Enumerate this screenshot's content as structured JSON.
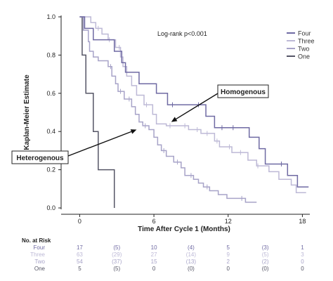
{
  "chart_data": {
    "type": "line",
    "step": true,
    "ylabel": "Kaplan-Meier Estimate",
    "xlabel": "Time After Cycle 1 (Months)",
    "xlim": [
      -1.5,
      18.6
    ],
    "ylim": [
      0,
      1.0
    ],
    "x_ticks": [
      0,
      6,
      12,
      18
    ],
    "y_ticks": [
      0.0,
      0.2,
      0.4,
      0.6,
      0.8,
      1.0
    ],
    "y_tick_labels": [
      "0.0",
      "0.2",
      "0.4",
      "0.6",
      "0.8",
      "1.0"
    ],
    "grid": false,
    "legend_position": "top-right",
    "annotation": "Log-rank p<0.001",
    "callouts": [
      {
        "label": "Homogenous",
        "arrow_to": {
          "x": 7.4,
          "y": 0.45
        }
      },
      {
        "label": "Heterogenous",
        "arrow_to": {
          "x": 4.6,
          "y": 0.41
        }
      }
    ],
    "series": [
      {
        "name": "Four",
        "color": "#6f6aa3",
        "points": [
          [
            0,
            1.0
          ],
          [
            0.4,
            0.94
          ],
          [
            1.1,
            0.88
          ],
          [
            2.8,
            0.82
          ],
          [
            3.4,
            0.76
          ],
          [
            3.7,
            0.71
          ],
          [
            4.8,
            0.65
          ],
          [
            6.2,
            0.6
          ],
          [
            7.1,
            0.54
          ],
          [
            10.2,
            0.48
          ],
          [
            10.9,
            0.42
          ],
          [
            13.7,
            0.37
          ],
          [
            14.5,
            0.31
          ],
          [
            15.0,
            0.23
          ],
          [
            16.8,
            0.17
          ],
          [
            17.6,
            0.11
          ],
          [
            18.5,
            0.11
          ]
        ],
        "censor_x": [
          7.5,
          9.6,
          11.5,
          12.4,
          16.3
        ]
      },
      {
        "name": "Three",
        "color": "#bdb9d6",
        "points": [
          [
            0,
            1.0
          ],
          [
            0.9,
            0.97
          ],
          [
            1.3,
            0.94
          ],
          [
            1.8,
            0.91
          ],
          [
            2.3,
            0.88
          ],
          [
            2.9,
            0.84
          ],
          [
            3.3,
            0.79
          ],
          [
            3.5,
            0.74
          ],
          [
            3.8,
            0.69
          ],
          [
            4.2,
            0.64
          ],
          [
            4.6,
            0.59
          ],
          [
            5.2,
            0.54
          ],
          [
            5.9,
            0.49
          ],
          [
            6.2,
            0.44
          ],
          [
            7.0,
            0.43
          ],
          [
            8.8,
            0.41
          ],
          [
            9.8,
            0.39
          ],
          [
            10.9,
            0.35
          ],
          [
            11.3,
            0.32
          ],
          [
            12.3,
            0.29
          ],
          [
            13.6,
            0.25
          ],
          [
            14.3,
            0.22
          ],
          [
            15.3,
            0.19
          ],
          [
            16.1,
            0.15
          ],
          [
            17.1,
            0.12
          ],
          [
            17.5,
            0.08
          ],
          [
            18.3,
            0.08
          ]
        ],
        "censor_x": [
          1.5,
          2.4,
          3.2,
          5.4,
          7.3,
          8.5,
          9.5,
          10.3,
          11.1,
          12.1,
          13.0,
          14.4
        ]
      },
      {
        "name": "Two",
        "color": "#a7a3c8",
        "points": [
          [
            0,
            1.0
          ],
          [
            0.3,
            0.93
          ],
          [
            0.7,
            0.87
          ],
          [
            0.8,
            0.82
          ],
          [
            1.1,
            0.79
          ],
          [
            1.5,
            0.77
          ],
          [
            2.3,
            0.74
          ],
          [
            2.6,
            0.69
          ],
          [
            2.9,
            0.65
          ],
          [
            3.1,
            0.61
          ],
          [
            3.6,
            0.57
          ],
          [
            4.2,
            0.53
          ],
          [
            4.5,
            0.49
          ],
          [
            4.8,
            0.45
          ],
          [
            5.1,
            0.43
          ],
          [
            5.6,
            0.41
          ],
          [
            6.0,
            0.37
          ],
          [
            6.3,
            0.33
          ],
          [
            6.6,
            0.3
          ],
          [
            7.0,
            0.27
          ],
          [
            7.6,
            0.24
          ],
          [
            8.2,
            0.21
          ],
          [
            8.5,
            0.17
          ],
          [
            9.2,
            0.15
          ],
          [
            9.6,
            0.13
          ],
          [
            10.0,
            0.11
          ],
          [
            10.5,
            0.09
          ],
          [
            11.2,
            0.07
          ],
          [
            11.9,
            0.05
          ],
          [
            13.4,
            0.03
          ],
          [
            14.3,
            0.03
          ]
        ],
        "censor_x": [
          2.5,
          3.3,
          4.0,
          5.3,
          6.8,
          7.9,
          9.0,
          10.3,
          13.1
        ]
      },
      {
        "name": "One",
        "color": "#555566",
        "points": [
          [
            0,
            1.0
          ],
          [
            0.2,
            0.8
          ],
          [
            0.5,
            0.6
          ],
          [
            1.1,
            0.4
          ],
          [
            1.5,
            0.2
          ],
          [
            2.8,
            0.0
          ]
        ],
        "censor_x": []
      }
    ]
  },
  "risk_table": {
    "title": "No. at Risk",
    "x": [
      0,
      3,
      6,
      9,
      12,
      15,
      18
    ],
    "rows": [
      {
        "name": "Four",
        "color": "#6f6aa3",
        "values": [
          "17",
          "(5)",
          "10",
          "(4)",
          "5",
          "(3)",
          "1"
        ]
      },
      {
        "name": "Three",
        "color": "#bdb9d6",
        "values": [
          "63",
          "(29)",
          "27",
          "(14)",
          "9",
          "(5)",
          "3"
        ]
      },
      {
        "name": "Two",
        "color": "#a7a3c8",
        "values": [
          "54",
          "(37)",
          "15",
          "(13)",
          "2",
          "(2)",
          "0"
        ]
      },
      {
        "name": "One",
        "color": "#555566",
        "values": [
          "5",
          "(5)",
          "0",
          "(0)",
          "0",
          "(0)",
          "0"
        ]
      }
    ]
  }
}
